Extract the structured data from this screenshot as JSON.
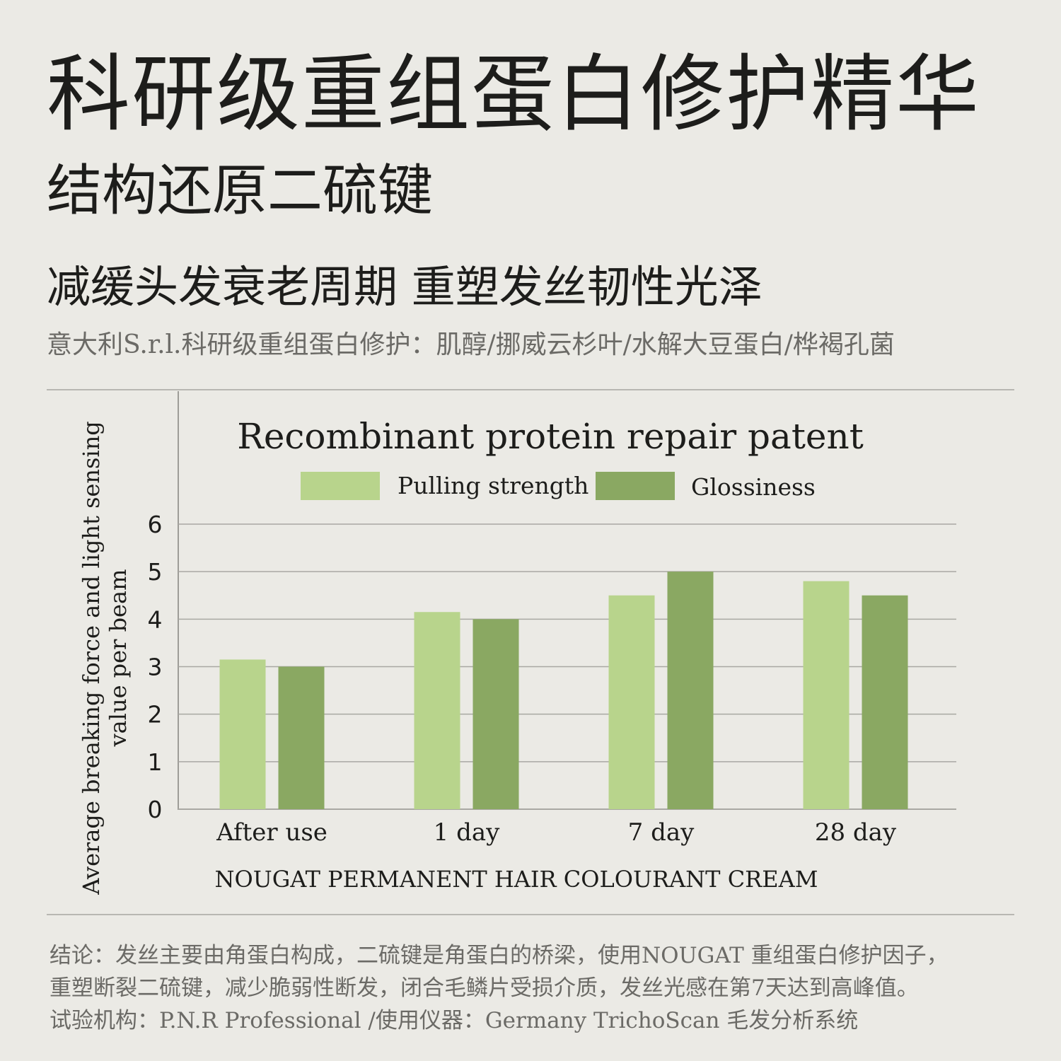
{
  "header": {
    "title": "科研级重组蛋白修护精华",
    "subtitle": "结构还原二硫键",
    "tagline": "减缓头发衰老周期 重塑发丝韧性光泽",
    "ingredients": "意大利S.r.l.科研级重组蛋白修护：肌醇/挪威云杉叶/水解大豆蛋白/桦褐孔菌"
  },
  "chart_data": {
    "type": "bar",
    "title": "Recombinant protein repair patent",
    "categories": [
      "After use",
      "1 day",
      "7 day",
      "28 day"
    ],
    "series": [
      {
        "name": "Pulling strength",
        "values": [
          3.15,
          4.15,
          4.5,
          4.8
        ],
        "color": "#b8d48c"
      },
      {
        "name": "Glossiness",
        "values": [
          3.0,
          4.0,
          5.0,
          4.5
        ],
        "color": "#8aa862"
      }
    ],
    "ylabel_line1": "Average breaking force and light sensing",
    "ylabel_line2": "value per beam",
    "xlabel": "NOUGAT PERMANENT HAIR COLOURANT CREAM",
    "yticks": [
      "0",
      "1",
      "2",
      "3",
      "4",
      "5",
      "6"
    ],
    "ylim": [
      0,
      6
    ],
    "grid": true,
    "legend_position": "top"
  },
  "conclusion": {
    "line1": "结论：发丝主要由角蛋白构成，二硫键是角蛋白的桥梁，使用NOUGAT 重组蛋白修护因子，",
    "line2": "重塑断裂二硫键，减少脆弱性断发，闭合毛鳞片受损介质，发丝光感在第7天达到高峰值。",
    "line3": "试验机构：P.N.R Professional /使用仪器：Germany TrichoScan 毛发分析系统"
  }
}
